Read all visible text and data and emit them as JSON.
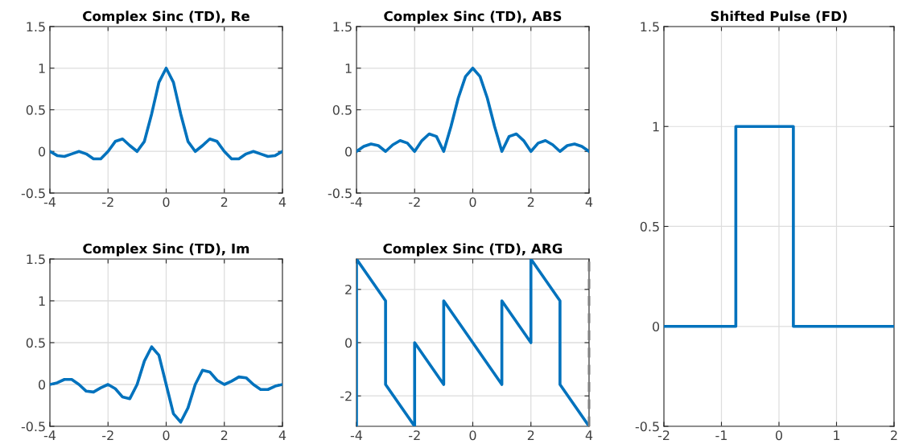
{
  "chart_data": [
    {
      "type": "line",
      "title": "Complex Sinc (TD), Re",
      "x": [
        -4,
        -3.75,
        -3.5,
        -3.25,
        -3,
        -2.75,
        -2.5,
        -2.25,
        -2,
        -1.75,
        -1.5,
        -1.25,
        -1,
        -0.75,
        -0.5,
        -0.25,
        0,
        0.25,
        0.5,
        0.75,
        1,
        1.25,
        1.5,
        1.75,
        2,
        2.25,
        2.5,
        2.75,
        3,
        3.25,
        3.5,
        3.75,
        4
      ],
      "series": [
        {
          "color": "#0072bd",
          "values": [
            0,
            -0.05,
            -0.06,
            -0.03,
            0,
            -0.03,
            -0.09,
            -0.09,
            0,
            0.12,
            0.15,
            0.07,
            0,
            0.12,
            0.45,
            0.83,
            1,
            0.83,
            0.45,
            0.12,
            0,
            0.07,
            0.15,
            0.12,
            0,
            -0.09,
            -0.09,
            -0.03,
            0,
            -0.03,
            -0.06,
            -0.05,
            0
          ]
        }
      ],
      "xlim": [
        -4,
        4
      ],
      "ylim": [
        -0.5,
        1.5
      ],
      "xticks": [
        -4,
        -2,
        0,
        2,
        4
      ],
      "yticks": [
        -0.5,
        0,
        0.5,
        1,
        1.5
      ],
      "grid": true
    },
    {
      "type": "line",
      "title": "Complex Sinc (TD), ABS",
      "x": [
        -4,
        -3.75,
        -3.5,
        -3.25,
        -3,
        -2.75,
        -2.5,
        -2.25,
        -2,
        -1.75,
        -1.5,
        -1.25,
        -1,
        -0.75,
        -0.5,
        -0.25,
        0,
        0.25,
        0.5,
        0.75,
        1,
        1.25,
        1.5,
        1.75,
        2,
        2.25,
        2.5,
        2.75,
        3,
        3.25,
        3.5,
        3.75,
        4
      ],
      "series": [
        {
          "color": "#0072bd",
          "values": [
            0,
            0.06,
            0.09,
            0.07,
            0,
            0.08,
            0.13,
            0.1,
            0,
            0.13,
            0.21,
            0.18,
            0,
            0.3,
            0.64,
            0.9,
            1,
            0.9,
            0.64,
            0.3,
            0,
            0.18,
            0.21,
            0.13,
            0,
            0.1,
            0.13,
            0.08,
            0,
            0.07,
            0.09,
            0.06,
            0
          ]
        }
      ],
      "xlim": [
        -4,
        4
      ],
      "ylim": [
        -0.5,
        1.5
      ],
      "xticks": [
        -4,
        -2,
        0,
        2,
        4
      ],
      "yticks": [
        -0.5,
        0,
        0.5,
        1,
        1.5
      ],
      "grid": true
    },
    {
      "type": "line",
      "title": "Shifted Pulse (FD)",
      "x": [
        -2,
        -0.75,
        -0.75,
        0.25,
        0.25,
        2
      ],
      "series": [
        {
          "color": "#0072bd",
          "values": [
            0,
            0,
            1,
            1,
            0,
            0
          ]
        }
      ],
      "xlim": [
        -2,
        2
      ],
      "ylim": [
        -0.5,
        1.5
      ],
      "xticks": [
        -2,
        -1,
        0,
        1,
        2
      ],
      "yticks": [
        -0.5,
        0,
        0.5,
        1,
        1.5
      ],
      "grid": true
    },
    {
      "type": "line",
      "title": "Complex Sinc (TD), Im",
      "x": [
        -4,
        -3.75,
        -3.5,
        -3.25,
        -3,
        -2.75,
        -2.5,
        -2.25,
        -2,
        -1.75,
        -1.5,
        -1.25,
        -1,
        -0.75,
        -0.5,
        -0.25,
        0,
        0.25,
        0.5,
        0.75,
        1,
        1.25,
        1.5,
        1.75,
        2,
        2.25,
        2.5,
        2.75,
        3,
        3.25,
        3.5,
        3.75,
        4
      ],
      "series": [
        {
          "color": "#0072bd",
          "values": [
            0,
            0.02,
            0.06,
            0.06,
            0,
            -0.08,
            -0.09,
            -0.04,
            0,
            -0.05,
            -0.15,
            -0.17,
            0,
            0.28,
            0.45,
            0.35,
            0,
            -0.35,
            -0.45,
            -0.28,
            0,
            0.17,
            0.15,
            0.05,
            0,
            0.04,
            0.09,
            0.08,
            0,
            -0.06,
            -0.06,
            -0.02,
            0
          ]
        }
      ],
      "xlim": [
        -4,
        4
      ],
      "ylim": [
        -0.5,
        1.5
      ],
      "xticks": [
        -4,
        -2,
        0,
        2,
        4
      ],
      "yticks": [
        -0.5,
        0,
        0.5,
        1,
        1.5
      ],
      "grid": true
    },
    {
      "type": "line",
      "title": "Complex Sinc (TD), ARG",
      "x": [
        -4,
        -4,
        -3,
        -3,
        -2,
        -2,
        -1,
        -1,
        1,
        1,
        2,
        2,
        3,
        3,
        4
      ],
      "series": [
        {
          "color": "#0072bd",
          "values": [
            -3.14,
            3.14,
            1.57,
            -1.57,
            -3.14,
            0,
            -1.57,
            1.57,
            -1.57,
            1.57,
            0,
            3.14,
            1.57,
            -1.57,
            -3.14
          ]
        }
      ],
      "xlim": [
        -4,
        4
      ],
      "ylim": [
        -3.1416,
        3.1416
      ],
      "xticks": [
        -4,
        -2,
        0,
        2,
        4
      ],
      "yticks": [
        -2,
        0,
        2
      ],
      "grid": true,
      "ref_lines": [
        {
          "axis": "x",
          "value": 4,
          "color": "#808080",
          "line_style": "dashed"
        }
      ]
    }
  ]
}
